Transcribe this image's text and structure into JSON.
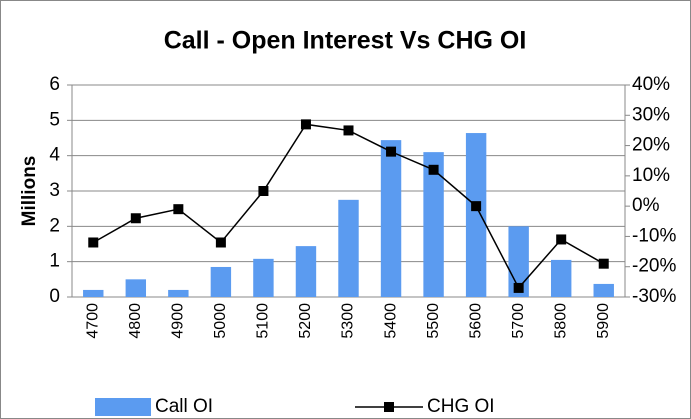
{
  "chart_data": {
    "type": "bar_line",
    "title": "Call - Open Interest Vs CHG OI",
    "ylabel": "Millions",
    "categories": [
      "4700",
      "4800",
      "4900",
      "5000",
      "5100",
      "5200",
      "5300",
      "5400",
      "5500",
      "5600",
      "5700",
      "5800",
      "5900"
    ],
    "series": [
      {
        "name": "Call OI",
        "type": "bar",
        "color": "#5b9bf0",
        "values": [
          0.2,
          0.5,
          0.2,
          0.85,
          1.08,
          1.44,
          2.75,
          4.44,
          4.1,
          4.64,
          2.0,
          1.05,
          0.37
        ]
      },
      {
        "name": "CHG OI",
        "type": "line",
        "axis": "y2",
        "color": "#000000",
        "values": [
          -12,
          -4,
          -1,
          -12,
          5,
          27,
          25,
          18,
          12,
          0,
          -27,
          -11,
          -19
        ]
      }
    ],
    "ylim": [
      0,
      6
    ],
    "yticks": [
      0,
      1,
      2,
      3,
      4,
      5,
      6
    ],
    "y2lim": [
      -30,
      40
    ],
    "y2ticks": [
      {
        "value": -30,
        "label": "-30%"
      },
      {
        "value": -20,
        "label": "-20%"
      },
      {
        "value": -10,
        "label": "-10%"
      },
      {
        "value": 0,
        "label": "0%"
      },
      {
        "value": 10,
        "label": "10%"
      },
      {
        "value": 20,
        "label": "20%"
      },
      {
        "value": 30,
        "label": "30%"
      },
      {
        "value": 40,
        "label": "40%"
      }
    ],
    "grid": true,
    "legend": "bottom"
  }
}
